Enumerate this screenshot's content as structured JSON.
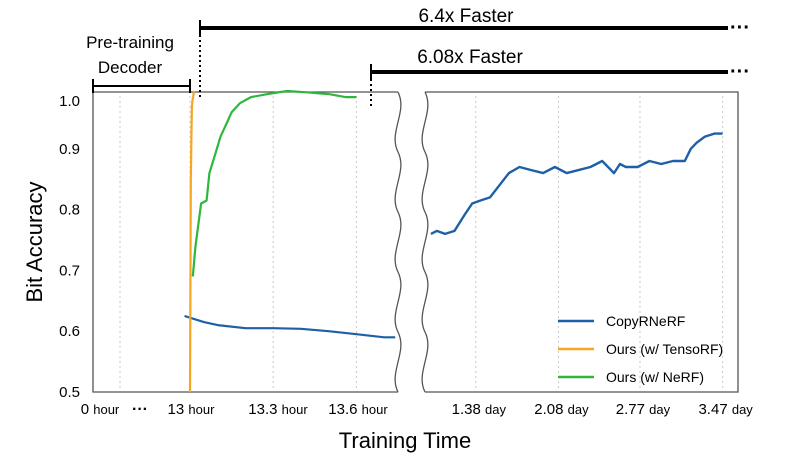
{
  "chart_data": {
    "type": "line",
    "title": "",
    "xlabel": "Training Time",
    "ylabel": "Bit Accuracy",
    "ylim": [
      0.5,
      1.0
    ],
    "yticks": [
      "0.5",
      "0.6",
      "0.7",
      "0.8",
      "0.9",
      "1.0"
    ],
    "grid": "vertical dotted gridlines",
    "legend_position": "bottom-right",
    "left_panel": {
      "xticks": [
        {
          "num": "0",
          "unit": "hour"
        },
        {
          "num": "13",
          "unit": "hour"
        },
        {
          "num": "13.3",
          "unit": "hour"
        },
        {
          "num": "13.6",
          "unit": "hour"
        }
      ],
      "x_range_hours": [
        13.0,
        13.75
      ],
      "series": [
        {
          "name": "Ours (w/ TensoRF)",
          "color": "#F5A623",
          "x_hours": [
            13.0,
            13.001,
            13.002,
            13.003,
            13.004,
            13.005,
            13.006,
            13.007,
            13.009,
            13.011,
            13.013,
            13.015
          ],
          "values": [
            0.5,
            0.62,
            0.75,
            0.85,
            0.88,
            0.92,
            0.95,
            0.97,
            0.98,
            0.985,
            0.99,
            0.995
          ]
        },
        {
          "name": "Ours (w/ NeRF)",
          "color": "#2DB83D",
          "x_hours": [
            13.01,
            13.02,
            13.04,
            13.06,
            13.07,
            13.09,
            13.11,
            13.13,
            13.15,
            13.18,
            13.22,
            13.28,
            13.35,
            13.42,
            13.5,
            13.56,
            13.6
          ],
          "values": [
            0.69,
            0.74,
            0.81,
            0.815,
            0.86,
            0.89,
            0.92,
            0.94,
            0.96,
            0.975,
            0.985,
            0.99,
            0.995,
            0.993,
            0.99,
            0.985,
            0.985
          ]
        },
        {
          "name": "CopyRNeRF",
          "color": "#1F5FA6",
          "x_hours": [
            12.98,
            13.05,
            13.1,
            13.2,
            13.3,
            13.4,
            13.5,
            13.6,
            13.7,
            13.74
          ],
          "values": [
            0.625,
            0.615,
            0.61,
            0.605,
            0.605,
            0.604,
            0.6,
            0.595,
            0.59,
            0.59
          ]
        }
      ]
    },
    "right_panel": {
      "xticks": [
        {
          "num": "1.38",
          "unit": "day"
        },
        {
          "num": "2.08",
          "unit": "day"
        },
        {
          "num": "2.77",
          "unit": "day"
        },
        {
          "num": "3.47",
          "unit": "day"
        }
      ],
      "x_range_days": [
        0.95,
        3.6
      ],
      "series": [
        {
          "name": "CopyRNeRF",
          "color": "#1F5FA6",
          "x_days": [
            1.0,
            1.05,
            1.12,
            1.2,
            1.28,
            1.35,
            1.42,
            1.5,
            1.58,
            1.66,
            1.75,
            1.85,
            1.95,
            2.05,
            2.15,
            2.25,
            2.35,
            2.45,
            2.55,
            2.6,
            2.65,
            2.75,
            2.85,
            2.95,
            3.05,
            3.15,
            3.2,
            3.25,
            3.32,
            3.4,
            3.47
          ],
          "values": [
            0.76,
            0.765,
            0.76,
            0.765,
            0.79,
            0.81,
            0.815,
            0.82,
            0.84,
            0.86,
            0.87,
            0.865,
            0.86,
            0.87,
            0.86,
            0.865,
            0.87,
            0.88,
            0.86,
            0.875,
            0.87,
            0.87,
            0.88,
            0.875,
            0.88,
            0.88,
            0.9,
            0.91,
            0.92,
            0.925,
            0.925
          ]
        }
      ]
    },
    "legend": [
      {
        "label": "CopyRNeRF",
        "color": "#1F5FA6"
      },
      {
        "label": "Ours (w/ TensoRF)",
        "color": "#F5A623"
      },
      {
        "label": "Ours (w/ NeRF)",
        "color": "#2DB83D"
      }
    ],
    "annotations": {
      "pretrain_label_line1": "Pre-training",
      "pretrain_label_line2": "Decoder",
      "speedup_tensorf": "6.4x Faster",
      "speedup_nerf": "6.08x Faster",
      "ellipsis": "···"
    }
  }
}
